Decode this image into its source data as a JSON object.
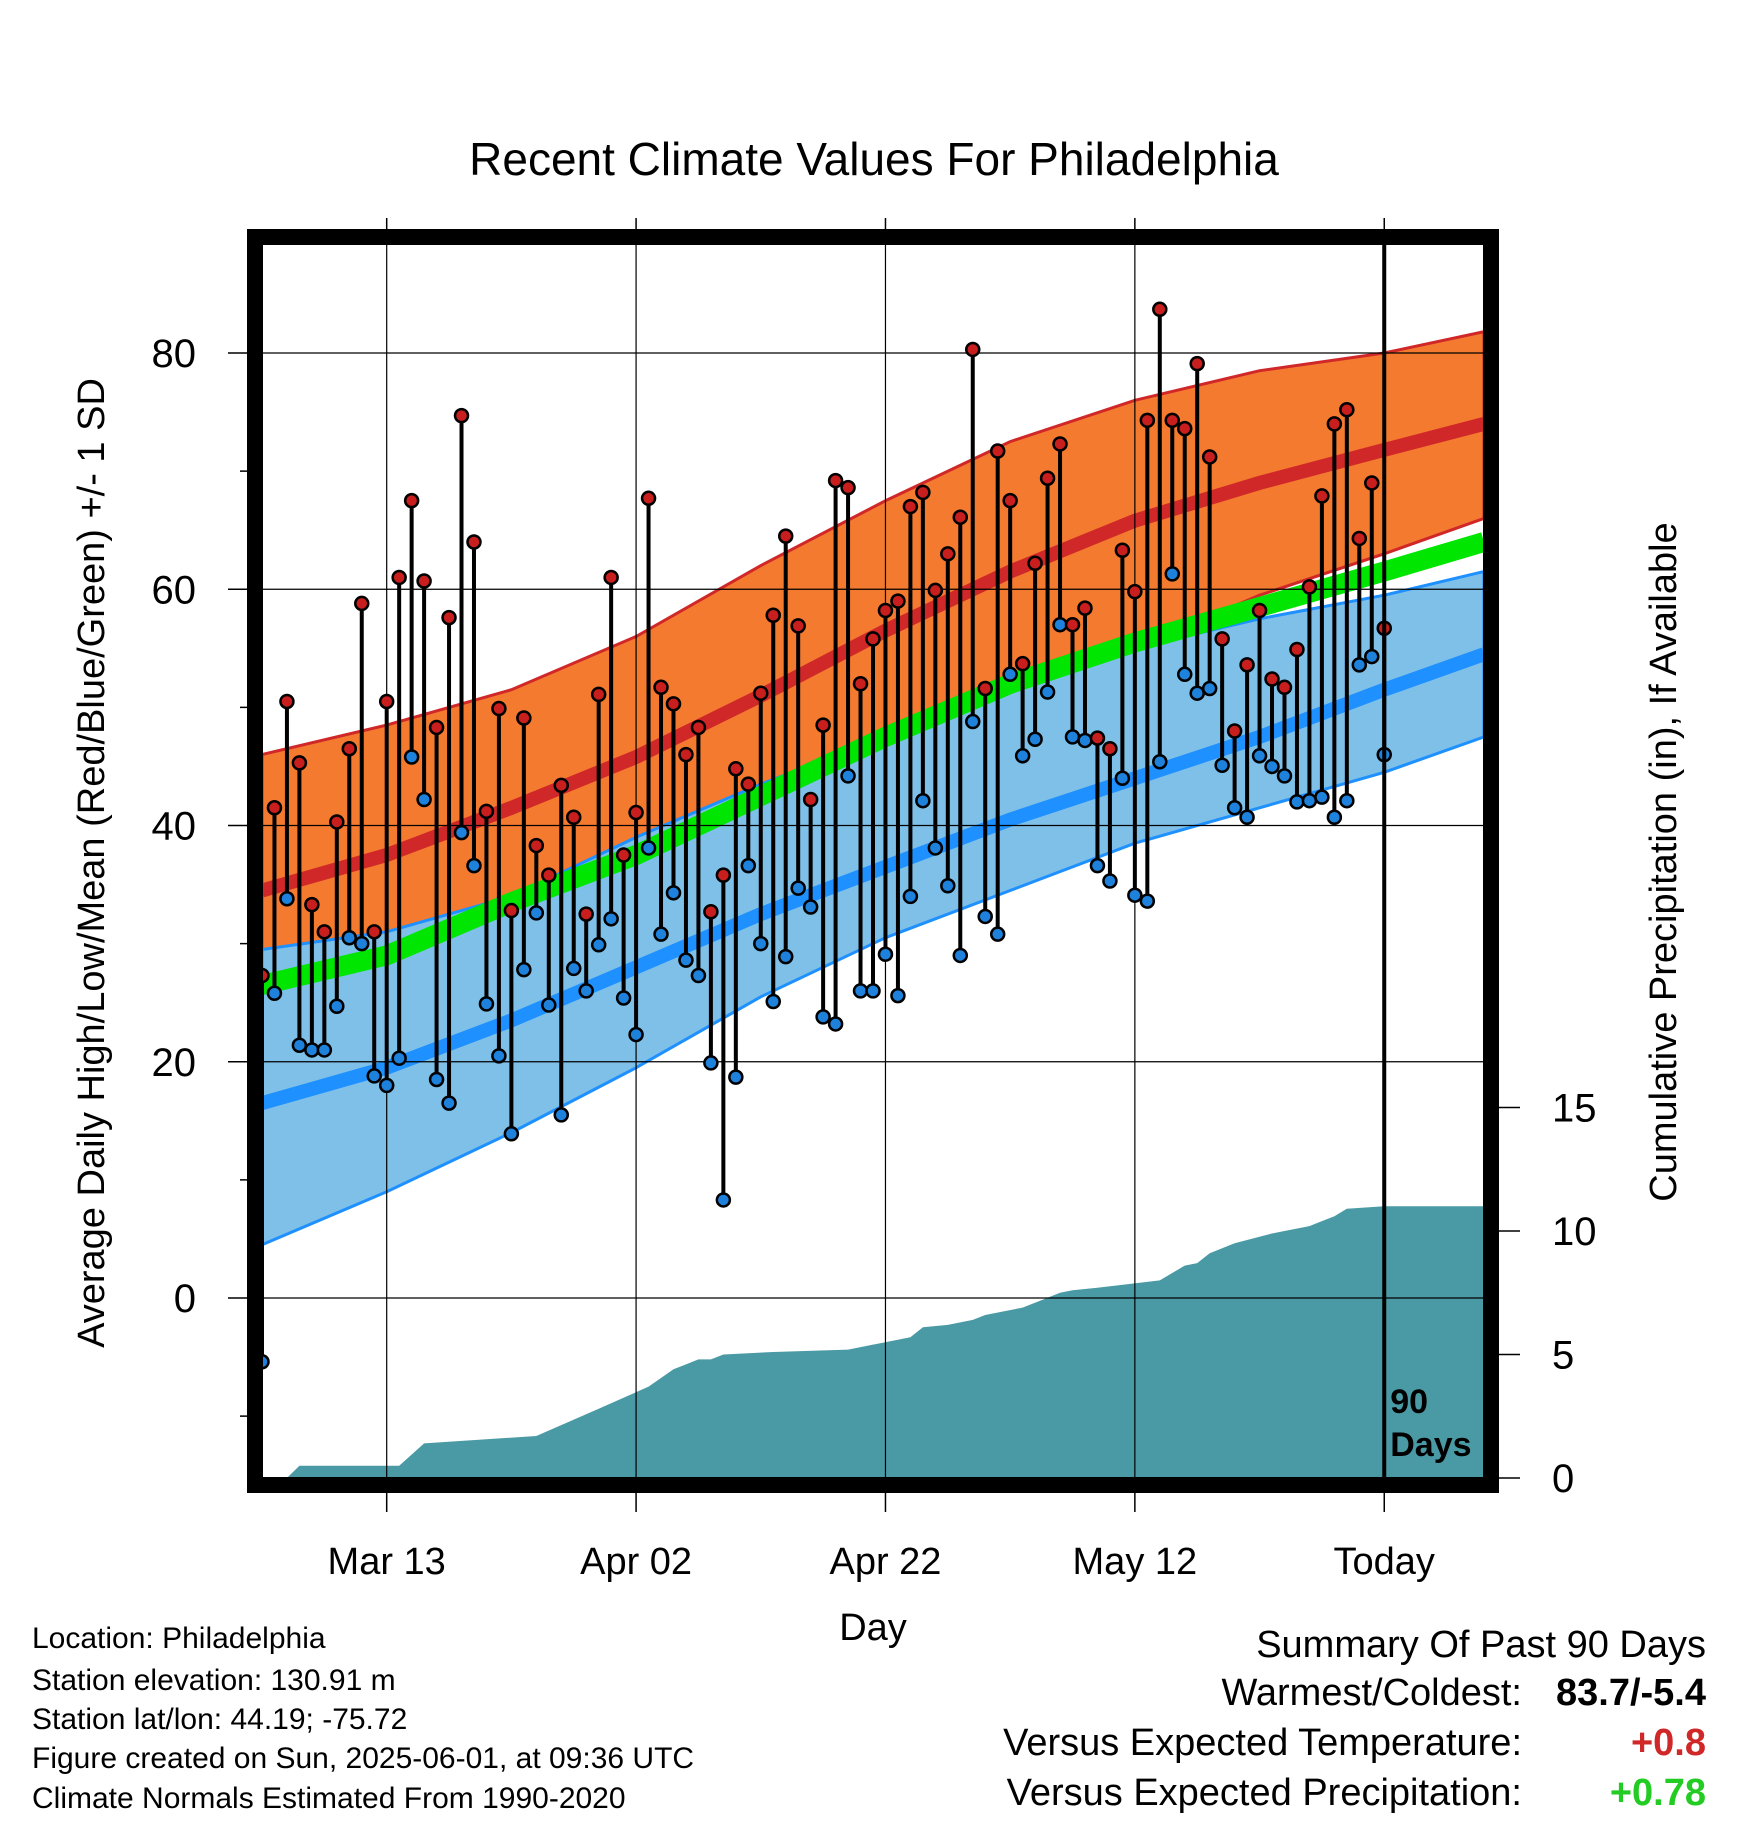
{
  "title": "Recent Climate Values For Philadelphia",
  "colors": {
    "high_band": "#f47a30",
    "high_line": "#d02828",
    "low_band": "#7fc0e8",
    "low_line": "#1e90ff",
    "mean_line": "#00e600",
    "precip": "#4a9aa5",
    "high_dot": "#c81e1e",
    "low_dot": "#1e82dc",
    "warm_text": "#d02828",
    "precip_text": "#22cc22"
  },
  "chart_data": {
    "type": "line",
    "xlabel": "Day",
    "ylabel_left": "Average Daily High/Low/Mean (Red/Blue/Green) +/- 1 SD",
    "ylabel_right": "Cumulative Precipitation (in), If Available",
    "x_range": [
      -89,
      9
    ],
    "ylim_left": [
      -15,
      88
    ],
    "ylim_right": [
      0,
      18.5
    ],
    "x_ticks": [
      {
        "day": -79,
        "label": "Mar 13"
      },
      {
        "day": -59,
        "label": "Apr 02"
      },
      {
        "day": -39,
        "label": "Apr 22"
      },
      {
        "day": -19,
        "label": "May 12"
      },
      {
        "day": 1,
        "label": "Today"
      }
    ],
    "y_ticks_left": [
      0,
      20,
      40,
      60,
      80
    ],
    "y_ticks_right": [
      0,
      5,
      10,
      15
    ],
    "grid": true,
    "today_marker": {
      "day": 1,
      "label_line1": "90",
      "label_line2": "Days"
    },
    "normal_high": {
      "x": [
        -89,
        -79,
        -69,
        -59,
        -49,
        -39,
        -29,
        -19,
        -9,
        1,
        9
      ],
      "mean": [
        34.5,
        37.5,
        41.5,
        45.8,
        51.0,
        56.5,
        61.5,
        65.8,
        69.0,
        71.8,
        74.0
      ],
      "upper": [
        46.0,
        48.5,
        51.5,
        56.0,
        62.0,
        67.5,
        72.5,
        76.0,
        78.5,
        80.0,
        81.8
      ],
      "lower": [
        24.5,
        27.0,
        30.5,
        35.5,
        40.5,
        46.0,
        50.5,
        55.0,
        59.5,
        63.0,
        66.0
      ]
    },
    "normal_low": {
      "x": [
        -89,
        -79,
        -69,
        -59,
        -49,
        -39,
        -29,
        -19,
        -9,
        1,
        9
      ],
      "mean": [
        16.5,
        19.5,
        23.5,
        28.0,
        32.5,
        36.5,
        40.5,
        44.0,
        47.5,
        51.5,
        54.5
      ],
      "upper": [
        29.5,
        31.0,
        34.0,
        39.0,
        43.5,
        47.5,
        52.0,
        55.0,
        57.5,
        59.5,
        61.5
      ],
      "lower": [
        4.5,
        9.0,
        14.0,
        19.5,
        25.5,
        30.5,
        34.5,
        38.5,
        41.5,
        44.5,
        47.5
      ]
    },
    "normal_mean": {
      "x": [
        -89,
        -79,
        -69,
        -59,
        -49,
        -39,
        -29,
        -19,
        -9,
        1,
        9
      ],
      "values": [
        26.5,
        29.0,
        33.5,
        37.5,
        42.5,
        47.5,
        52.0,
        55.5,
        58.5,
        61.5,
        64.0
      ]
    },
    "daily_highs": [
      27.3,
      41.5,
      50.5,
      45.3,
      33.3,
      31.0,
      40.3,
      46.5,
      58.8,
      31.0,
      50.5,
      61.0,
      67.5,
      60.7,
      48.3,
      57.6,
      74.7,
      64.0,
      41.2,
      49.9,
      32.8,
      49.1,
      38.3,
      35.8,
      43.4,
      40.7,
      32.5,
      51.1,
      61.0,
      37.5,
      41.1,
      67.7,
      51.7,
      50.3,
      46.0,
      48.3,
      32.7,
      35.8,
      44.8,
      43.5,
      51.2,
      57.8,
      64.5,
      56.9,
      42.2,
      48.5,
      69.2,
      68.6,
      52.0,
      55.8,
      58.2,
      59.0,
      67.0,
      68.2,
      59.9,
      63.0,
      66.1,
      80.3,
      51.6,
      71.7,
      67.5,
      53.7,
      62.2,
      69.4,
      72.3,
      57.0,
      58.4,
      47.4,
      46.5,
      63.3,
      59.8,
      74.3,
      83.7,
      74.3,
      73.6,
      79.1,
      71.2,
      55.8,
      48.0,
      53.6,
      58.2,
      52.4,
      51.7,
      54.9,
      60.2,
      67.9,
      74.0,
      75.2,
      64.3,
      69.0,
      56.7
    ],
    "daily_lows": [
      -5.4,
      25.8,
      33.8,
      21.4,
      21.0,
      21.0,
      24.7,
      30.5,
      30.0,
      18.8,
      18.0,
      20.3,
      45.8,
      42.2,
      18.5,
      16.5,
      39.4,
      36.6,
      24.9,
      20.5,
      13.9,
      27.8,
      32.6,
      24.8,
      15.5,
      27.9,
      26.0,
      29.9,
      32.1,
      25.4,
      22.3,
      38.1,
      30.8,
      34.3,
      28.6,
      27.3,
      19.9,
      8.3,
      18.7,
      36.6,
      30.0,
      25.1,
      28.9,
      34.7,
      33.1,
      23.8,
      23.2,
      44.2,
      26.0,
      26.0,
      29.1,
      25.6,
      34.0,
      42.1,
      38.1,
      34.9,
      29.0,
      48.8,
      32.3,
      30.8,
      52.8,
      45.9,
      47.3,
      51.3,
      57.0,
      47.5,
      47.2,
      36.6,
      35.3,
      44.0,
      34.1,
      33.6,
      45.4,
      61.3,
      52.8,
      51.2,
      51.6,
      45.1,
      41.5,
      40.7,
      45.9,
      45.0,
      44.2,
      42.0,
      42.1,
      42.4,
      40.7,
      42.1,
      53.6,
      54.3,
      46.0
    ],
    "cumulative_precip": {
      "x": [
        -89,
        -87,
        -86,
        -78,
        -76,
        -67,
        -62,
        -58,
        -56,
        -55,
        -54,
        -53,
        -52,
        -48,
        -42,
        -40,
        -39,
        -37,
        -36,
        -34,
        -32,
        -31,
        -28,
        -26,
        -25,
        -24,
        -22,
        -17,
        -15,
        -14,
        -13,
        -11,
        -8,
        -7,
        -5,
        -4,
        -3,
        -2,
        1,
        9
      ],
      "values": [
        0,
        0,
        0.5,
        0.5,
        1.4,
        1.7,
        2.8,
        3.7,
        4.4,
        4.6,
        4.8,
        4.8,
        5.0,
        5.1,
        5.2,
        5.4,
        5.5,
        5.7,
        6.1,
        6.2,
        6.4,
        6.6,
        6.9,
        7.3,
        7.5,
        7.6,
        7.7,
        8.0,
        8.6,
        8.7,
        9.1,
        9.5,
        9.9,
        10.0,
        10.2,
        10.4,
        10.6,
        10.9,
        11.0,
        11.0
      ]
    }
  },
  "info": {
    "location": "Location: Philadelphia",
    "elevation": "Station elevation: 130.91 m",
    "latlon": "Station lat/lon: 44.19; -75.72",
    "created": "Figure created on Sun, 2025-06-01, at 09:36 UTC",
    "normals": "Climate Normals Estimated From 1990-2020"
  },
  "summary": {
    "title": "Summary Of Past 90 Days",
    "warmest_coldest_label": "Warmest/Coldest:",
    "warmest_coldest_value": "83.7/-5.4",
    "temp_label": "Versus Expected Temperature:",
    "temp_value": "+0.8",
    "precip_label": "Versus Expected Precipitation:",
    "precip_value": "+0.78"
  }
}
